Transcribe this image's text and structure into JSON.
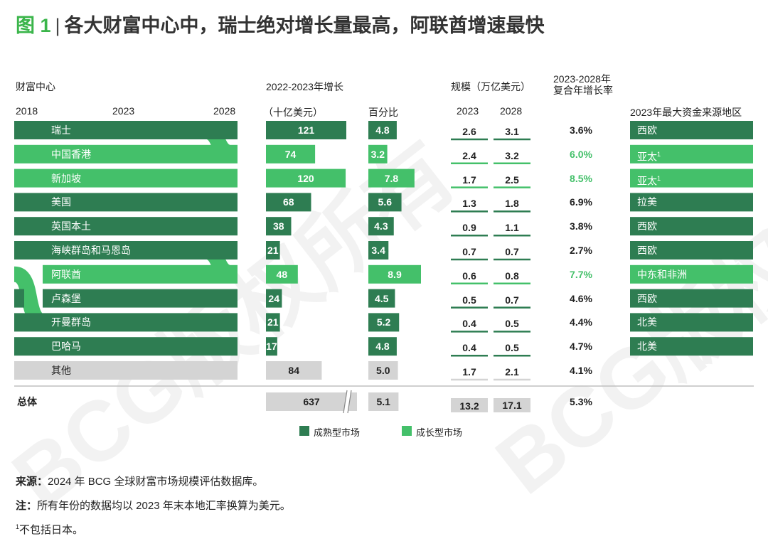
{
  "title": {
    "fig": "图 1",
    "text": "各大财富中心中，瑞士绝对增长量最高，阿联酋增速最快"
  },
  "headers": {
    "center": "财富中心",
    "y2018": "2018",
    "y2023": "2023",
    "y2028": "2028",
    "growth_line1": "2022-2023年增长",
    "growth_abs": "（十亿美元）",
    "growth_pct": "百分比",
    "scale": "规模（万亿美元）",
    "scale_2023": "2023",
    "scale_2028": "2028",
    "cagr_line1": "2023-2028年",
    "cagr_line2": "复合年增长率",
    "source_region": "2023年最大资金来源地区"
  },
  "colors": {
    "mature": "#2e7d52",
    "growth": "#44c06a",
    "other": "#d4d4d4"
  },
  "legend": {
    "mature": "成熟型市场",
    "growth": "成长型市场"
  },
  "footer": {
    "source_label": "来源：",
    "source_text": "2024 年 BCG 全球财富市场规模评估数据库。",
    "note_label": "注：",
    "note_text": "所有年份的数据均以 2023 年末本地汇率换算为美元。",
    "footnote_mark": "1",
    "footnote_text": "不包括日本。"
  },
  "watermark": "BCG版权所有",
  "chart_data": {
    "type": "table",
    "columns": [
      "财富中心",
      "2022-2023年增长（十亿美元）",
      "百分比",
      "2023",
      "2028",
      "2023-2028年复合年增长率",
      "2023年最大资金来源地区"
    ],
    "rows": [
      {
        "name": "瑞士",
        "market": "mature",
        "growth_abs": 121,
        "growth_pct": "4.8",
        "size_2023": "2.6",
        "size_2028": "3.1",
        "cagr": "3.6%",
        "region": "西欧",
        "region_sup": ""
      },
      {
        "name": "中国香港",
        "market": "growth",
        "growth_abs": 74,
        "growth_pct": "3.2",
        "size_2023": "2.4",
        "size_2028": "3.2",
        "cagr": "6.0%",
        "region": "亚太",
        "region_sup": "1"
      },
      {
        "name": "新加坡",
        "market": "growth",
        "growth_abs": 120,
        "growth_pct": "7.8",
        "size_2023": "1.7",
        "size_2028": "2.5",
        "cagr": "8.5%",
        "region": "亚太",
        "region_sup": "1"
      },
      {
        "name": "美国",
        "market": "mature",
        "growth_abs": 68,
        "growth_pct": "5.6",
        "size_2023": "1.3",
        "size_2028": "1.8",
        "cagr": "6.9%",
        "region": "拉美",
        "region_sup": ""
      },
      {
        "name": "英国本土",
        "market": "mature",
        "growth_abs": 38,
        "growth_pct": "4.3",
        "size_2023": "0.9",
        "size_2028": "1.1",
        "cagr": "3.8%",
        "region": "西欧",
        "region_sup": ""
      },
      {
        "name": "海峡群岛和马恩岛",
        "market": "mature",
        "growth_abs": 21,
        "growth_pct": "3.4",
        "size_2023": "0.7",
        "size_2028": "0.7",
        "cagr": "2.7%",
        "region": "西欧",
        "region_sup": ""
      },
      {
        "name": "阿联酋",
        "market": "growth",
        "growth_abs": 48,
        "growth_pct": "8.9",
        "size_2023": "0.6",
        "size_2028": "0.8",
        "cagr": "7.7%",
        "region": "中东和非洲",
        "region_sup": ""
      },
      {
        "name": "卢森堡",
        "market": "mature",
        "growth_abs": 24,
        "growth_pct": "4.5",
        "size_2023": "0.5",
        "size_2028": "0.7",
        "cagr": "4.6%",
        "region": "西欧",
        "region_sup": ""
      },
      {
        "name": "开曼群岛",
        "market": "mature",
        "growth_abs": 21,
        "growth_pct": "5.2",
        "size_2023": "0.4",
        "size_2028": "0.5",
        "cagr": "4.4%",
        "region": "北美",
        "region_sup": ""
      },
      {
        "name": "巴哈马",
        "market": "mature",
        "growth_abs": 17,
        "growth_pct": "4.8",
        "size_2023": "0.4",
        "size_2028": "0.5",
        "cagr": "4.7%",
        "region": "北美",
        "region_sup": ""
      },
      {
        "name": "其他",
        "market": "other",
        "growth_abs": 84,
        "growth_pct": "5.0",
        "size_2023": "1.7",
        "size_2028": "2.1",
        "cagr": "4.1%",
        "region": "",
        "region_sup": ""
      }
    ],
    "total": {
      "name": "总体",
      "growth_abs": 637,
      "growth_pct": "5.1",
      "size_2023": "13.2",
      "size_2028": "17.1",
      "cagr": "5.3%"
    }
  }
}
